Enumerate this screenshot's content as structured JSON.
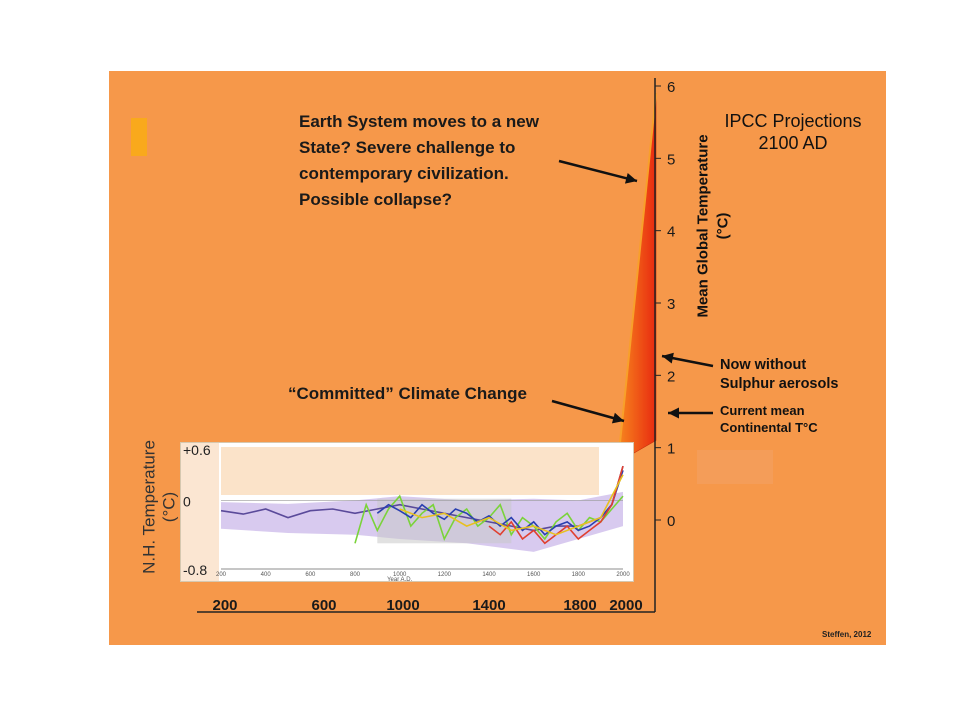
{
  "slide": {
    "callouts": {
      "new_state": [
        "Earth System moves to a new",
        "State? Severe challenge to",
        "contemporary civilization.",
        "Possible collapse?"
      ],
      "committed": "“Committed” Climate Change",
      "ipcc": [
        "IPCC Projections",
        "2100 AD"
      ],
      "no_aerosols": [
        "Now  without",
        "Sulphur aerosols"
      ],
      "current_mean": [
        "Current mean",
        "Continental T°C"
      ]
    },
    "credit": "Steffen, 2012",
    "colors": {
      "background": "#f6984a",
      "projection_hot": "#e82a10",
      "projection_warm": "#f77a1c",
      "inset_band": "#fbe3c9",
      "uncertainty": "#c9b6e8"
    }
  },
  "chart_data": [
    {
      "type": "area",
      "title": "",
      "ylabel": "Mean Global Temperature (°C)",
      "ylim": [
        0,
        6
      ],
      "yticks": [
        "0",
        "1",
        "2",
        "3",
        "4",
        "5",
        "6"
      ],
      "series": [
        {
          "name": "",
          "x": [
            "2000",
            "2100 AD"
          ],
          "low": [
            0.8,
            1.1
          ],
          "high": [
            0.8,
            5.9
          ]
        }
      ],
      "annotations": [
        {
          "text": "Now without Sulphur aerosols",
          "y": 2.3
        },
        {
          "text": "Current mean Continental T°C",
          "y": 1.55
        }
      ]
    },
    {
      "type": "line",
      "title": "",
      "xlabel": "Year A.D.",
      "ylabel": "N.H. Temperature (°C)",
      "ytick_labels": [
        "+0.6",
        "0",
        "-0.8"
      ],
      "ylim": [
        -0.8,
        0.6
      ],
      "xlim": [
        200,
        2000
      ],
      "xticks_inner": [
        "200",
        "400",
        "600",
        "800",
        "1000",
        "1200",
        "1400",
        "1600",
        "1800",
        "2000"
      ],
      "xticks_outer": [
        "200",
        "600",
        "1000",
        "1400",
        "1800",
        "2000"
      ],
      "series": [
        {
          "name": "",
          "color": "#5a4a9a",
          "x": [
            200,
            300,
            400,
            500,
            600,
            700,
            800,
            900,
            1000,
            1100,
            1200,
            1300,
            1400,
            1500,
            1600,
            1700,
            1800,
            1900,
            1950,
            2000
          ],
          "y": [
            -0.12,
            -0.16,
            -0.1,
            -0.2,
            -0.12,
            -0.1,
            -0.15,
            -0.1,
            -0.05,
            -0.1,
            -0.15,
            -0.2,
            -0.25,
            -0.3,
            -0.35,
            -0.3,
            -0.3,
            -0.2,
            -0.05,
            0.4
          ]
        },
        {
          "name": "",
          "color": "#7ad33a",
          "x": [
            800,
            850,
            900,
            950,
            1000,
            1050,
            1100,
            1150,
            1200,
            1250,
            1300,
            1350,
            1400,
            1450,
            1500,
            1550,
            1600,
            1650,
            1700,
            1750,
            1800,
            1850,
            1900,
            1950,
            2000
          ],
          "y": [
            -0.5,
            -0.05,
            -0.35,
            -0.1,
            0.05,
            -0.3,
            -0.15,
            -0.05,
            -0.45,
            -0.2,
            -0.1,
            -0.3,
            -0.2,
            -0.05,
            -0.4,
            -0.2,
            -0.3,
            -0.45,
            -0.25,
            -0.15,
            -0.35,
            -0.2,
            -0.25,
            -0.1,
            0.05
          ]
        },
        {
          "name": "",
          "color": "#2a3fb0",
          "x": [
            900,
            950,
            1000,
            1050,
            1100,
            1150,
            1200,
            1250,
            1300,
            1350,
            1400,
            1450,
            1500,
            1550,
            1600,
            1650,
            1700,
            1750,
            1800,
            1850,
            1900,
            1950,
            2000
          ],
          "y": [
            -0.15,
            -0.05,
            -0.12,
            -0.2,
            -0.05,
            -0.15,
            -0.22,
            -0.1,
            -0.15,
            -0.25,
            -0.18,
            -0.3,
            -0.2,
            -0.35,
            -0.25,
            -0.4,
            -0.3,
            -0.25,
            -0.35,
            -0.3,
            -0.2,
            -0.05,
            0.35
          ]
        },
        {
          "name": "",
          "color": "#e04030",
          "x": [
            1400,
            1450,
            1500,
            1550,
            1600,
            1650,
            1700,
            1750,
            1800,
            1850,
            1900,
            1950,
            2000
          ],
          "y": [
            -0.3,
            -0.4,
            -0.25,
            -0.45,
            -0.35,
            -0.5,
            -0.4,
            -0.3,
            -0.45,
            -0.35,
            -0.25,
            -0.05,
            0.4
          ]
        },
        {
          "name": "",
          "color": "#e8c020",
          "x": [
            1000,
            1100,
            1200,
            1300,
            1400,
            1500,
            1600,
            1700,
            1800,
            1900,
            2000
          ],
          "y": [
            -0.1,
            -0.2,
            -0.15,
            -0.3,
            -0.2,
            -0.35,
            -0.3,
            -0.4,
            -0.3,
            -0.2,
            0.3
          ]
        }
      ]
    }
  ]
}
